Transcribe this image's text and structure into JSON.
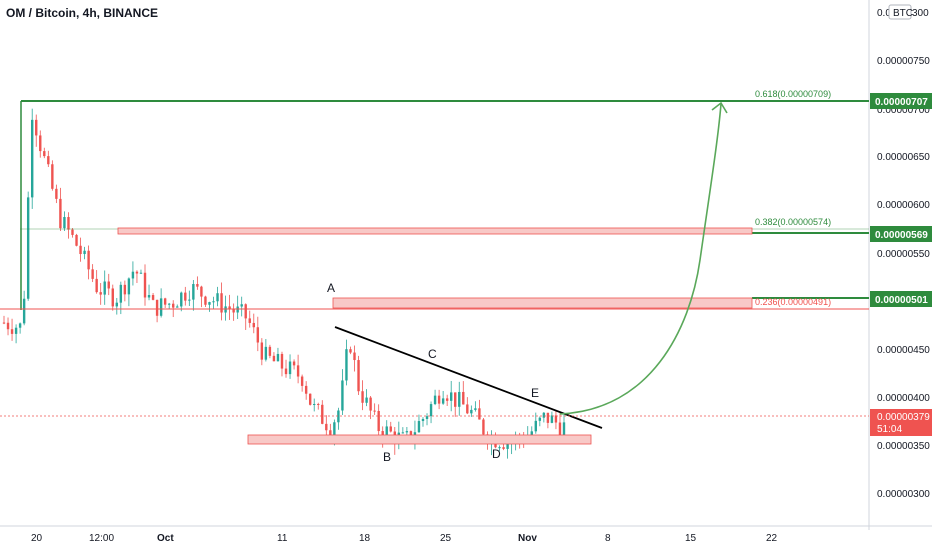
{
  "header": {
    "symbol_title": "OM / Bitcoin, 4h, BINANCE"
  },
  "price_axis": {
    "currency_label": "BTC",
    "ticks": [
      "0.0",
      "0.00000750",
      "0.00000700",
      "0.00000650",
      "0.00000600",
      "0.00000550",
      "0.00000450",
      "0.00000400",
      "0.00000350",
      "0.00000300"
    ],
    "top_tick_suffix": "300"
  },
  "time_axis": {
    "ticks": [
      "20",
      "12:00",
      "Oct",
      "11",
      "18",
      "25",
      "Nov",
      "8",
      "15",
      "22"
    ]
  },
  "pattern_labels": [
    "A",
    "B",
    "C",
    "D",
    "E"
  ],
  "fib_levels": [
    {
      "ratio_label": "0.618(0.00000709)",
      "badge": "0.00000707",
      "color": "#2e8b3d"
    },
    {
      "ratio_label": "0.382(0.00000574)",
      "badge": "0.00000569",
      "color": "#2e8b3d"
    },
    {
      "ratio_label": "0.236(0.00000491)",
      "badge": "0.00000501",
      "color": "#2e8b3d"
    }
  ],
  "current_price": {
    "value": "0.00000379",
    "countdown": "51:04",
    "color": "#ef5350"
  },
  "colors": {
    "up": "#26a69a",
    "down": "#ef5350",
    "green_line": "#2e8b3d",
    "zone_fill": "#f8c9c7"
  },
  "chart_data": {
    "type": "candlestick",
    "title": "OM / Bitcoin, 4h, BINANCE",
    "yunit": "BTC",
    "ylim": [
      2.8e-06,
      8.1e-06
    ],
    "x_ticks": [
      "20",
      "12:00",
      "Oct",
      "11",
      "18",
      "25",
      "Nov",
      "8",
      "15",
      "22"
    ],
    "close_series_approx": [
      [
        0,
        4.85e-06
      ],
      [
        0.02,
        4.8e-06
      ],
      [
        0.03,
        7e-06
      ],
      [
        0.04,
        6.6e-06
      ],
      [
        0.06,
        5.9e-06
      ],
      [
        0.08,
        5.6e-06
      ],
      [
        0.1,
        5.2e-06
      ],
      [
        0.12,
        5.1e-06
      ],
      [
        0.14,
        5.4e-06
      ],
      [
        0.16,
        5e-06
      ],
      [
        0.18,
        5.05e-06
      ],
      [
        0.2,
        5.2e-06
      ],
      [
        0.22,
        5.1e-06
      ],
      [
        0.24,
        5e-06
      ],
      [
        0.26,
        4.9e-06
      ],
      [
        0.28,
        4.5e-06
      ],
      [
        0.3,
        4.4e-06
      ],
      [
        0.32,
        4.3e-06
      ],
      [
        0.33,
        4e-06
      ],
      [
        0.35,
        3.8e-06
      ],
      [
        0.36,
        4e-06
      ],
      [
        0.37,
        4.7e-06
      ],
      [
        0.38,
        4.2e-06
      ],
      [
        0.4,
        3.8e-06
      ],
      [
        0.42,
        3.7e-06
      ],
      [
        0.43,
        3.65e-06
      ],
      [
        0.45,
        3.9e-06
      ],
      [
        0.47,
        4.2e-06
      ],
      [
        0.48,
        4.1e-06
      ],
      [
        0.5,
        3.95e-06
      ],
      [
        0.52,
        3.7e-06
      ],
      [
        0.54,
        3.65e-06
      ],
      [
        0.56,
        3.7e-06
      ],
      [
        0.58,
        3.9e-06
      ],
      [
        0.6,
        3.8e-06
      ]
    ],
    "annotations": {
      "fib": [
        {
          "label": "0.618(0.00000709)",
          "level": 7.07e-06
        },
        {
          "label": "0.382(0.00000574)",
          "level": 5.69e-06
        },
        {
          "label": "0.236(0.00000491)",
          "level": 5.01e-06
        }
      ],
      "triangle_points": [
        "A",
        "B",
        "C",
        "D",
        "E"
      ],
      "current_price": 3.79e-06
    }
  }
}
